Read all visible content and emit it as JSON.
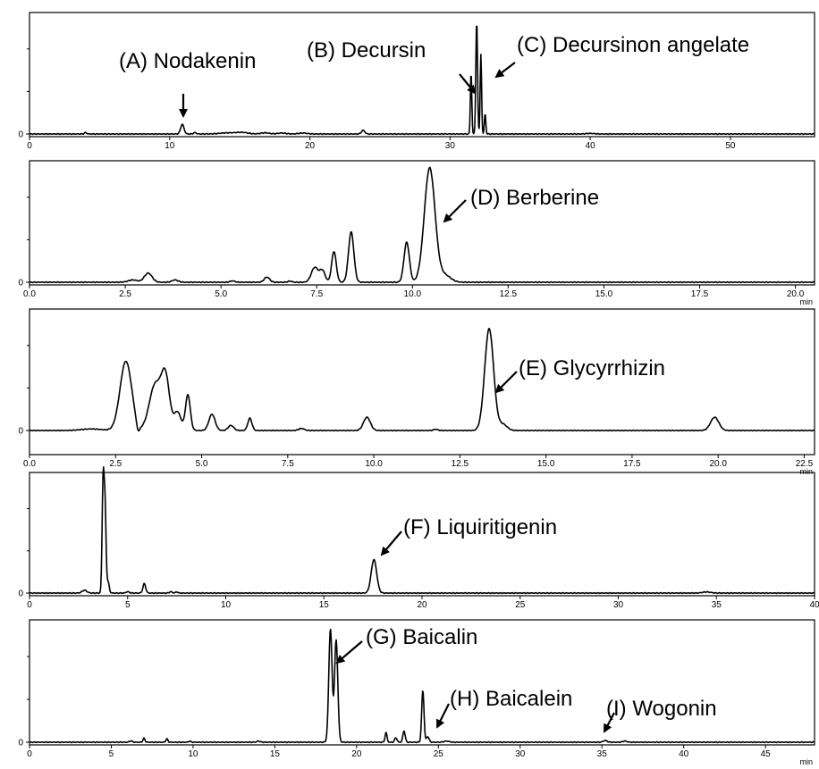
{
  "colors": {
    "trace": "#000000",
    "axis": "#000000",
    "background": "#ffffff"
  },
  "chart_data": [
    {
      "type": "line",
      "xlim": [
        0,
        56
      ],
      "ylim": [
        0,
        1
      ],
      "x_ticks": [
        "0",
        "10",
        "20",
        "30",
        "40",
        "50"
      ],
      "x_tick_values": [
        0,
        10,
        20,
        30,
        40,
        50
      ],
      "y_ticks": [
        "0"
      ],
      "unit_label": "",
      "series": [
        {
          "peaks": [
            {
              "x": 4.0,
              "h": 0.012,
              "w": 0.08
            },
            {
              "x": 10.9,
              "h": 0.085,
              "w": 0.12
            },
            {
              "x": 11.8,
              "h": 0.012,
              "w": 0.1
            },
            {
              "x": 14.2,
              "h": 0.01,
              "w": 0.6
            },
            {
              "x": 15.2,
              "h": 0.012,
              "w": 0.4
            },
            {
              "x": 16.8,
              "h": 0.01,
              "w": 0.3
            },
            {
              "x": 18.0,
              "h": 0.008,
              "w": 0.3
            },
            {
              "x": 19.5,
              "h": 0.008,
              "w": 0.3
            },
            {
              "x": 23.8,
              "h": 0.032,
              "w": 0.12
            },
            {
              "x": 31.5,
              "h": 0.55,
              "w": 0.05
            },
            {
              "x": 31.9,
              "h": 1.0,
              "w": 0.06
            },
            {
              "x": 32.2,
              "h": 0.7,
              "w": 0.05
            },
            {
              "x": 32.5,
              "h": 0.18,
              "w": 0.05
            },
            {
              "x": 40.0,
              "h": 0.005,
              "w": 0.3
            }
          ]
        }
      ],
      "annotations": [
        {
          "text": "(A) Nodakenin",
          "peak_x": 10.9
        },
        {
          "text": "(B) Decursin",
          "peak_x": 31.5
        },
        {
          "text": "(C) Decursinon angelate",
          "peak_x": 32.3
        }
      ]
    },
    {
      "type": "line",
      "xlim": [
        0,
        20.5
      ],
      "ylim": [
        0,
        1
      ],
      "x_ticks": [
        "0.0",
        "2.5",
        "5.0",
        "7.5",
        "10.0",
        "12.5",
        "15.0",
        "17.5",
        "20.0"
      ],
      "x_tick_values": [
        0,
        2.5,
        5,
        7.5,
        10,
        12.5,
        15,
        17.5,
        20
      ],
      "y_ticks": [
        "0"
      ],
      "unit_label": "min",
      "series": [
        {
          "peaks": [
            {
              "x": 2.7,
              "h": 0.02,
              "w": 0.12
            },
            {
              "x": 3.1,
              "h": 0.08,
              "w": 0.1
            },
            {
              "x": 3.8,
              "h": 0.02,
              "w": 0.08
            },
            {
              "x": 5.3,
              "h": 0.012,
              "w": 0.06
            },
            {
              "x": 6.2,
              "h": 0.045,
              "w": 0.07
            },
            {
              "x": 6.8,
              "h": 0.01,
              "w": 0.05
            },
            {
              "x": 7.45,
              "h": 0.13,
              "w": 0.09
            },
            {
              "x": 7.65,
              "h": 0.1,
              "w": 0.07
            },
            {
              "x": 7.95,
              "h": 0.27,
              "w": 0.06
            },
            {
              "x": 8.4,
              "h": 0.44,
              "w": 0.07
            },
            {
              "x": 9.85,
              "h": 0.35,
              "w": 0.07
            },
            {
              "x": 10.45,
              "h": 1.0,
              "w": 0.14
            },
            {
              "x": 10.85,
              "h": 0.06,
              "w": 0.15
            }
          ]
        }
      ],
      "annotations": [
        {
          "text": "(D) Berberine",
          "peak_x": 10.55
        }
      ]
    },
    {
      "type": "line",
      "xlim": [
        0,
        22.8
      ],
      "ylim": [
        0,
        1
      ],
      "x_ticks": [
        "0.0",
        "2.5",
        "5.0",
        "7.5",
        "10.0",
        "12.5",
        "15.0",
        "17.5",
        "20.0",
        "22.5"
      ],
      "x_tick_values": [
        0,
        2.5,
        5,
        7.5,
        10,
        12.5,
        15,
        17.5,
        20,
        22.5
      ],
      "y_ticks": [
        "0"
      ],
      "unit_label": "min",
      "series": [
        {
          "peaks": [
            {
              "x": 1.8,
              "h": 0.015,
              "w": 0.3
            },
            {
              "x": 2.8,
              "h": 0.68,
              "w": 0.17
            },
            {
              "x": 3.15,
              "h": -0.08,
              "w": 0.05
            },
            {
              "x": 3.65,
              "h": 0.45,
              "w": 0.17
            },
            {
              "x": 3.95,
              "h": 0.5,
              "w": 0.12
            },
            {
              "x": 4.3,
              "h": 0.18,
              "w": 0.1
            },
            {
              "x": 4.6,
              "h": 0.35,
              "w": 0.07
            },
            {
              "x": 5.3,
              "h": 0.16,
              "w": 0.09
            },
            {
              "x": 5.85,
              "h": 0.05,
              "w": 0.08
            },
            {
              "x": 6.4,
              "h": 0.12,
              "w": 0.06
            },
            {
              "x": 7.9,
              "h": 0.02,
              "w": 0.08
            },
            {
              "x": 9.8,
              "h": 0.13,
              "w": 0.1
            },
            {
              "x": 11.8,
              "h": 0.012,
              "w": 0.06
            },
            {
              "x": 13.35,
              "h": 1.0,
              "w": 0.13
            },
            {
              "x": 13.75,
              "h": 0.06,
              "w": 0.12
            },
            {
              "x": 19.9,
              "h": 0.13,
              "w": 0.12
            }
          ]
        }
      ],
      "annotations": [
        {
          "text": "(E) Glycyrrhizin",
          "peak_x": 13.5
        }
      ]
    },
    {
      "type": "line",
      "xlim": [
        0,
        40
      ],
      "ylim": [
        0,
        1
      ],
      "x_ticks": [
        "0",
        "5",
        "10",
        "15",
        "20",
        "25",
        "30",
        "35",
        "40"
      ],
      "x_tick_values": [
        0,
        5,
        10,
        15,
        20,
        25,
        30,
        35,
        40
      ],
      "y_ticks": [
        "0"
      ],
      "unit_label": "",
      "series": [
        {
          "peaks": [
            {
              "x": 2.8,
              "h": 0.025,
              "w": 0.12
            },
            {
              "x": 3.75,
              "h": 1.0,
              "w": 0.05
            },
            {
              "x": 3.85,
              "h": 0.75,
              "w": 0.05
            },
            {
              "x": 4.0,
              "h": 0.1,
              "w": 0.06
            },
            {
              "x": 5.0,
              "h": 0.012,
              "w": 0.08
            },
            {
              "x": 5.85,
              "h": 0.085,
              "w": 0.07
            },
            {
              "x": 7.2,
              "h": 0.012,
              "w": 0.07
            },
            {
              "x": 7.5,
              "h": 0.01,
              "w": 0.06
            },
            {
              "x": 17.55,
              "h": 0.3,
              "w": 0.14
            },
            {
              "x": 34.5,
              "h": 0.01,
              "w": 0.2
            }
          ]
        }
      ],
      "annotations": [
        {
          "text": "(F) Liquiritigenin",
          "peak_x": 17.6
        }
      ]
    },
    {
      "type": "line",
      "xlim": [
        0,
        48
      ],
      "ylim": [
        0,
        1
      ],
      "x_ticks": [
        "0",
        "5",
        "10",
        "15",
        "20",
        "25",
        "30",
        "35",
        "40",
        "45"
      ],
      "x_tick_values": [
        0,
        5,
        10,
        15,
        20,
        25,
        30,
        35,
        40,
        45
      ],
      "y_ticks": [
        "0"
      ],
      "unit_label": "min",
      "series": [
        {
          "peaks": [
            {
              "x": 6.2,
              "h": 0.012,
              "w": 0.08
            },
            {
              "x": 7.0,
              "h": 0.035,
              "w": 0.06
            },
            {
              "x": 8.4,
              "h": 0.03,
              "w": 0.06
            },
            {
              "x": 9.8,
              "h": 0.01,
              "w": 0.06
            },
            {
              "x": 14.0,
              "h": 0.01,
              "w": 0.1
            },
            {
              "x": 18.4,
              "h": 1.0,
              "w": 0.1
            },
            {
              "x": 18.75,
              "h": 0.9,
              "w": 0.1
            },
            {
              "x": 21.8,
              "h": 0.085,
              "w": 0.06
            },
            {
              "x": 22.4,
              "h": 0.04,
              "w": 0.07
            },
            {
              "x": 22.9,
              "h": 0.1,
              "w": 0.07
            },
            {
              "x": 24.05,
              "h": 0.46,
              "w": 0.07
            },
            {
              "x": 24.35,
              "h": 0.05,
              "w": 0.08
            },
            {
              "x": 25.5,
              "h": 0.01,
              "w": 0.15
            },
            {
              "x": 35.2,
              "h": 0.015,
              "w": 0.12
            },
            {
              "x": 36.4,
              "h": 0.01,
              "w": 0.12
            }
          ]
        }
      ],
      "annotations": [
        {
          "text": "(G) Baicalin",
          "peak_x": 18.6
        },
        {
          "text": "(H) Baicalein",
          "peak_x": 24.6
        },
        {
          "text": "(I) Wogonin",
          "peak_x": 35.2
        }
      ]
    }
  ]
}
